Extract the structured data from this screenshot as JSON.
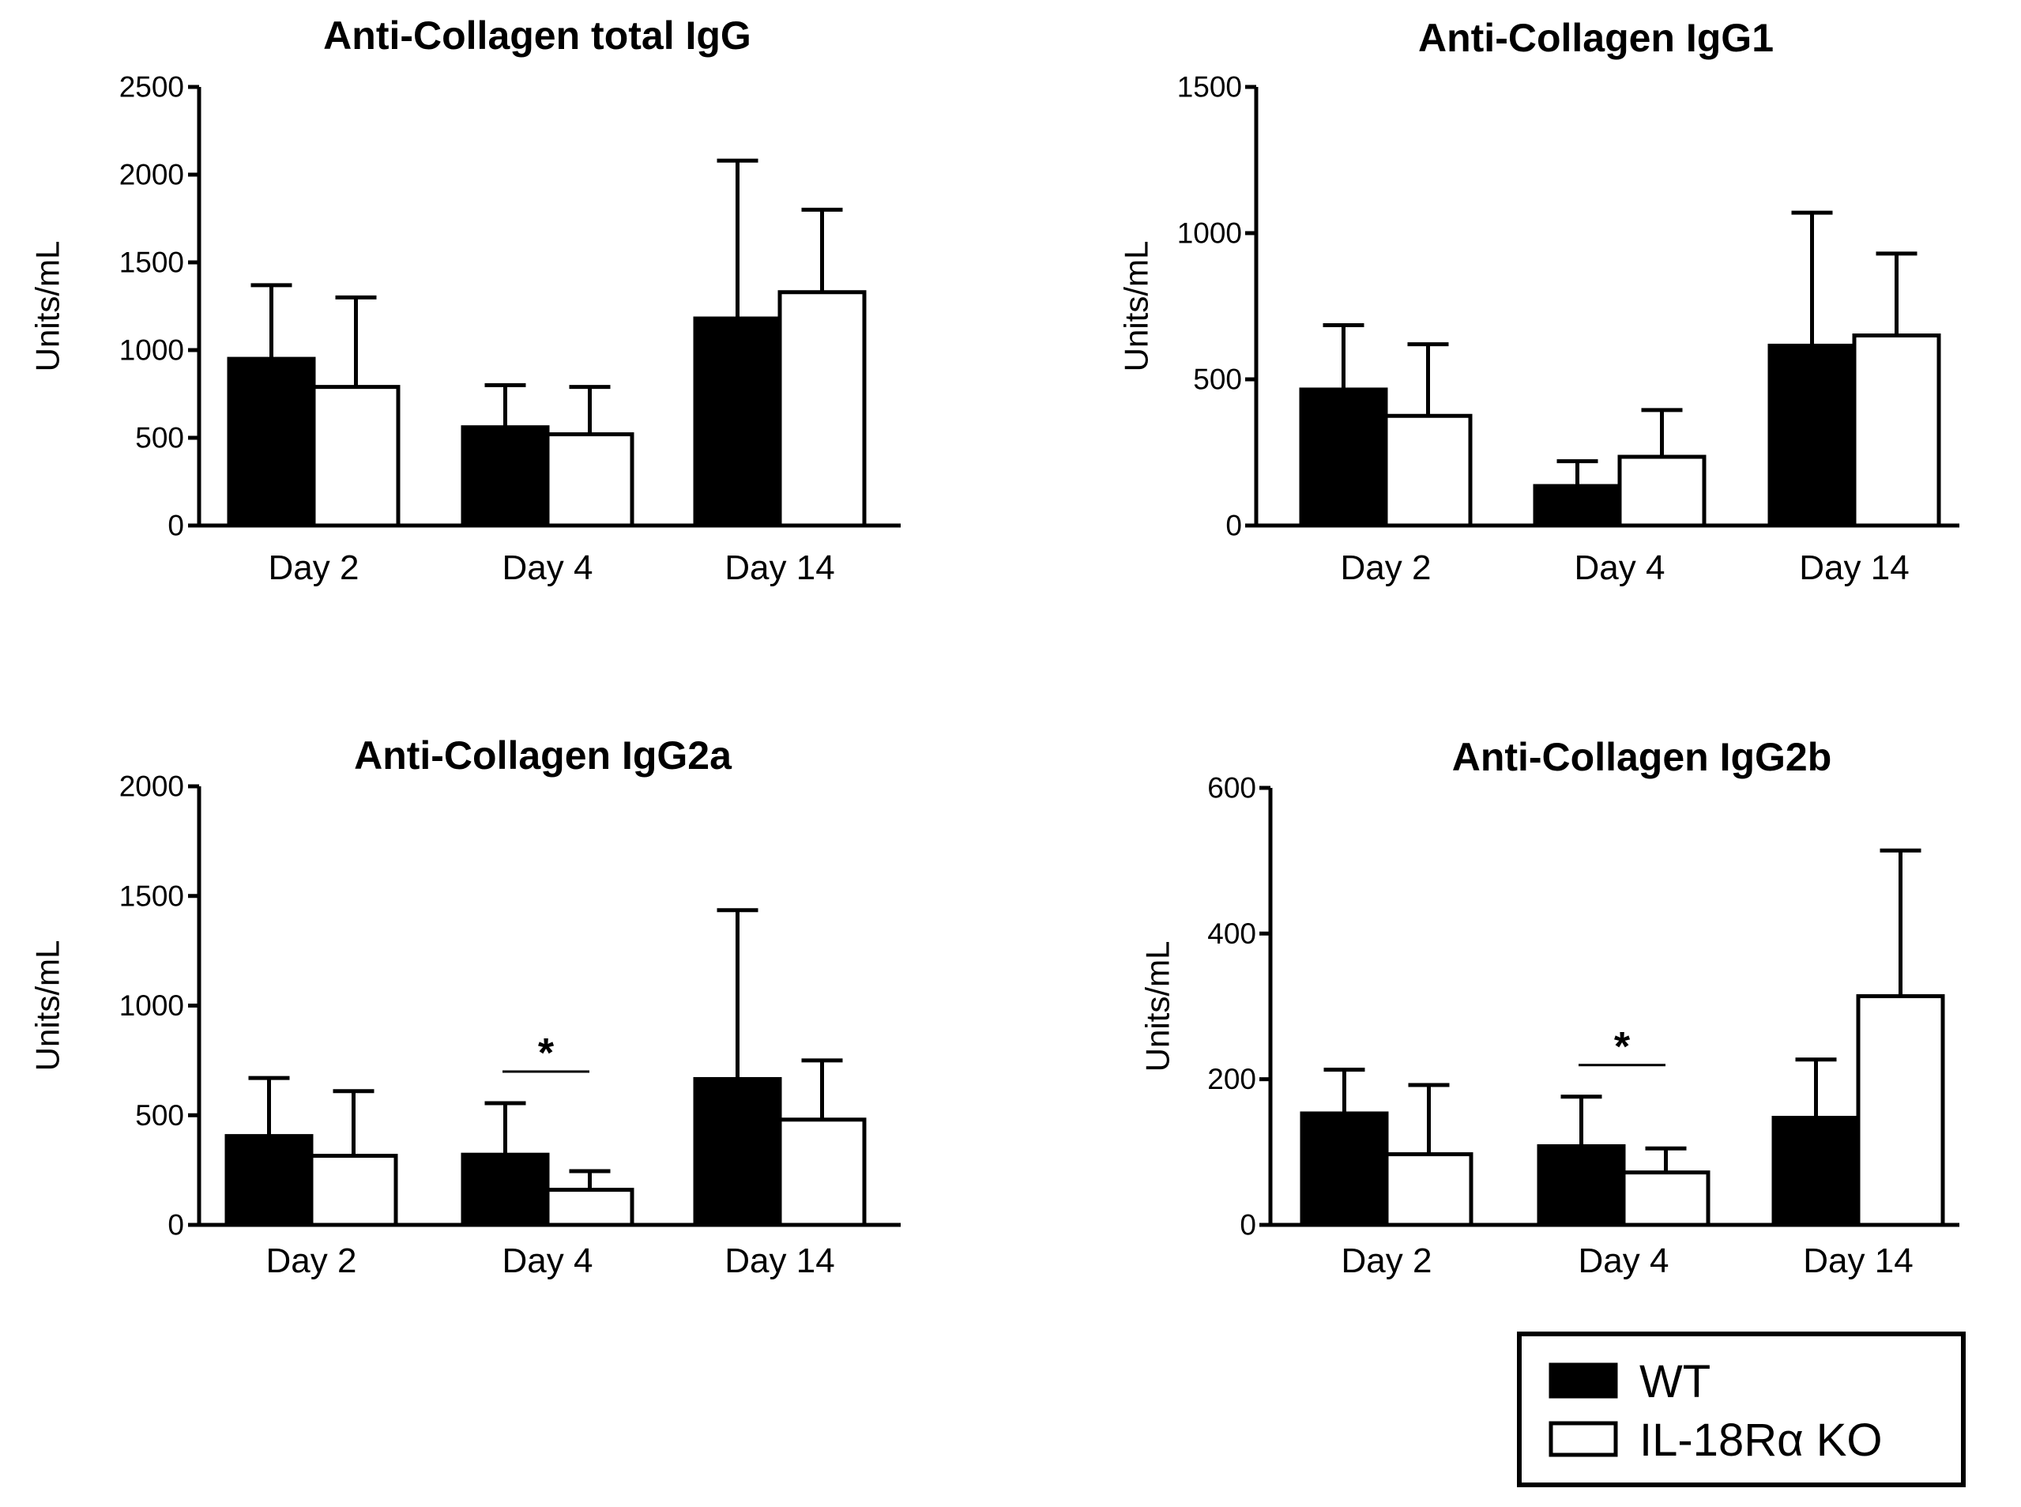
{
  "chart_data": [
    {
      "type": "bar",
      "title": "Anti-Collagen total IgG",
      "xlabel": "",
      "ylabel": "Units/mL",
      "ylim": [
        0,
        2500
      ],
      "yticks": [
        0,
        500,
        1000,
        1500,
        2000,
        2500
      ],
      "categories": [
        "Day 2",
        "Day 4",
        "Day 14"
      ],
      "series": [
        {
          "name": "WT",
          "values": [
            950,
            560,
            1180
          ],
          "errors": [
            420,
            240,
            900
          ]
        },
        {
          "name": "IL-18Rα KO",
          "values": [
            790,
            520,
            1330
          ],
          "errors": [
            510,
            270,
            470
          ]
        }
      ],
      "significance": []
    },
    {
      "type": "bar",
      "title": "Anti-Collagen IgG1",
      "xlabel": "",
      "ylabel": "Units/mL",
      "ylim": [
        0,
        1500
      ],
      "yticks": [
        0,
        500,
        1000,
        1500
      ],
      "categories": [
        "Day 2",
        "Day 4",
        "Day 14"
      ],
      "series": [
        {
          "name": "WT",
          "values": [
            465,
            135,
            615
          ],
          "errors": [
            220,
            85,
            455
          ]
        },
        {
          "name": "IL-18Rα KO",
          "values": [
            375,
            235,
            650
          ],
          "errors": [
            245,
            160,
            280
          ]
        }
      ],
      "significance": []
    },
    {
      "type": "bar",
      "title": "Anti-Collagen IgG2a",
      "xlabel": "",
      "ylabel": "Units/mL",
      "ylim": [
        0,
        2000
      ],
      "yticks": [
        0,
        500,
        1000,
        1500,
        2000
      ],
      "categories": [
        "Day 2",
        "Day 4",
        "Day 14"
      ],
      "series": [
        {
          "name": "WT",
          "values": [
            405,
            320,
            665
          ],
          "errors": [
            265,
            235,
            770
          ]
        },
        {
          "name": "IL-18Rα KO",
          "values": [
            315,
            160,
            480
          ],
          "errors": [
            295,
            85,
            270
          ]
        }
      ],
      "significance": [
        {
          "category": "Day 4",
          "label": "*"
        }
      ]
    },
    {
      "type": "bar",
      "title": "Anti-Collagen IgG2b",
      "xlabel": "",
      "ylabel": "Units/mL",
      "ylim": [
        0,
        600
      ],
      "yticks": [
        0,
        200,
        400,
        600
      ],
      "categories": [
        "Day 2",
        "Day 4",
        "Day 14"
      ],
      "series": [
        {
          "name": "WT",
          "values": [
            153,
            108,
            147
          ],
          "errors": [
            60,
            68,
            80
          ]
        },
        {
          "name": "IL-18Rα KO",
          "values": [
            97,
            72,
            314
          ],
          "errors": [
            95,
            33,
            200
          ]
        }
      ],
      "significance": [
        {
          "category": "Day 4",
          "label": "*"
        }
      ]
    }
  ],
  "legend": {
    "position": "bottom-right",
    "items": [
      {
        "label": "WT",
        "fill": "#000000"
      },
      {
        "label": "IL-18Rα KO",
        "fill": "#ffffff"
      }
    ]
  }
}
